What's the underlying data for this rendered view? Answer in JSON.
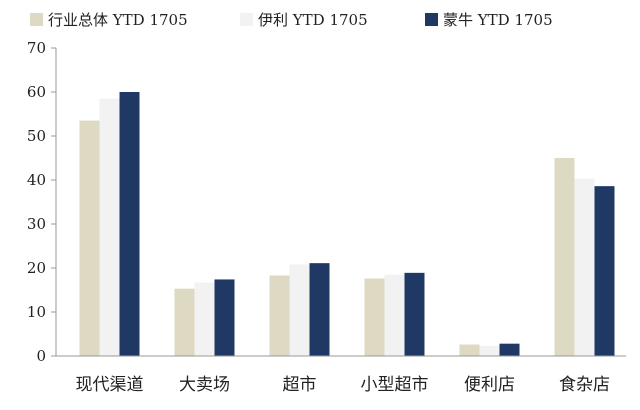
{
  "chart_data": {
    "type": "bar",
    "categories": [
      "现代渠道",
      "大卖场",
      "超市",
      "小型超市",
      "便利店",
      "食杂店"
    ],
    "series": [
      {
        "name": "行业总体 YTD 1705",
        "color": "#ddd9c3",
        "values": [
          53.5,
          15.3,
          18.3,
          17.6,
          2.6,
          45.0
        ]
      },
      {
        "name": "伊利 YTD 1705",
        "color": "#f2f2f2",
        "values": [
          58.5,
          16.7,
          20.8,
          18.5,
          2.3,
          40.3
        ]
      },
      {
        "name": "蒙牛 YTD 1705",
        "color": "#1f3864",
        "values": [
          60.0,
          17.4,
          21.1,
          18.9,
          2.8,
          38.6
        ]
      }
    ],
    "yticks": [
      "0",
      "10",
      "20",
      "30",
      "40",
      "50",
      "60",
      "70"
    ],
    "ylim": [
      0,
      70
    ],
    "legend_position": "top",
    "grid": false,
    "title": "",
    "xlabel": "",
    "ylabel": ""
  }
}
